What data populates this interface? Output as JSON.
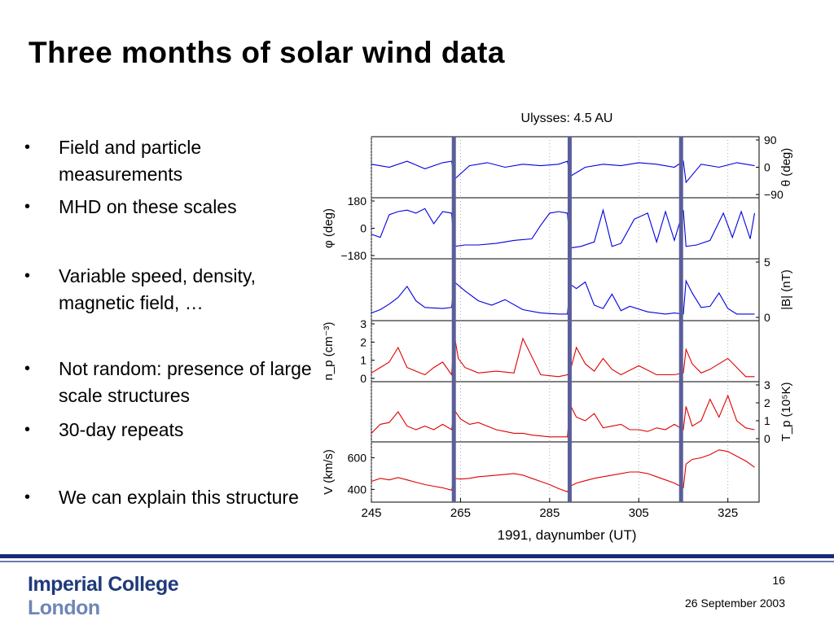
{
  "slide": {
    "title": "Three months of solar wind data",
    "page_number": "16",
    "date": "26 September 2003"
  },
  "bullets": [
    "Field and particle measurements",
    "MHD on these scales",
    "Variable speed, density, magnetic field, …",
    "Not random: presence of large scale structures",
    "30-day repeats",
    "We can explain this structure"
  ],
  "logo": {
    "line1": "Imperial College",
    "line2": "London"
  },
  "colors": {
    "title": "#000000",
    "footer_bar": "#1b2a78",
    "logo": "#1f3a7a",
    "field_trace": "#0000e0",
    "plasma_trace": "#e00000",
    "marker": "#5a5f99"
  },
  "chart_data": {
    "type": "line",
    "title": "Ulysses: 4.5 AU",
    "xlabel": "1991, daynumber (UT)",
    "xlim": [
      245,
      332
    ],
    "xticks": [
      "245",
      "265",
      "285",
      "305",
      "325"
    ],
    "vertical_markers": [
      263.5,
      289.5,
      314.5
    ],
    "panels": [
      {
        "id": "theta",
        "ylabel": "θ (deg)",
        "label_side": "right",
        "ylim": [
          -90,
          90
        ],
        "ticks": [
          "90",
          "0",
          "−90"
        ],
        "ticks_side": "right",
        "color": "#0000e0",
        "x": [
          245,
          249,
          253,
          257,
          261,
          263,
          263.6,
          267,
          271,
          275,
          279,
          283,
          287,
          289,
          289.6,
          293,
          297,
          301,
          305,
          309,
          313,
          315,
          315.6,
          319,
          323,
          327,
          331
        ],
        "values": [
          10,
          0,
          20,
          -5,
          15,
          20,
          -40,
          5,
          15,
          0,
          10,
          5,
          10,
          20,
          -30,
          0,
          10,
          5,
          15,
          10,
          0,
          20,
          -50,
          10,
          0,
          15,
          5
        ]
      },
      {
        "id": "phi",
        "ylabel": "φ (deg)",
        "label_side": "left",
        "ylim": [
          -180,
          180
        ],
        "ticks": [
          "180",
          "0",
          "−180"
        ],
        "ticks_side": "left",
        "color": "#0000e0",
        "x": [
          245,
          247,
          249,
          251,
          253,
          255,
          257,
          259,
          261,
          263,
          263.6,
          266,
          269,
          273,
          277,
          281,
          283,
          285,
          287,
          289,
          289.6,
          292,
          295,
          297,
          299,
          301,
          304,
          307,
          309,
          311,
          313,
          315,
          315.6,
          318,
          321,
          324,
          326,
          328,
          330,
          331
        ],
        "values": [
          -40,
          -60,
          90,
          110,
          120,
          100,
          130,
          30,
          110,
          100,
          -120,
          -110,
          -110,
          -100,
          -80,
          -70,
          20,
          100,
          110,
          100,
          -130,
          -120,
          -90,
          120,
          -120,
          -100,
          60,
          100,
          -90,
          110,
          -80,
          120,
          -120,
          -110,
          -80,
          100,
          -60,
          110,
          -70,
          100
        ]
      },
      {
        "id": "B",
        "ylabel": "|B| (nT)",
        "label_side": "right",
        "ylim": [
          0,
          5
        ],
        "ticks": [
          "5",
          "0"
        ],
        "ticks_side": "right",
        "color": "#0000e0",
        "x": [
          245,
          247,
          249,
          251,
          253,
          255,
          257,
          261,
          263,
          263.6,
          266,
          269,
          272,
          275,
          279,
          283,
          287,
          289,
          289.6,
          291,
          293,
          295,
          297,
          299,
          301,
          303,
          307,
          311,
          313,
          315,
          315.6,
          317,
          319,
          321,
          323,
          325,
          327,
          331
        ],
        "values": [
          0.4,
          0.7,
          1.2,
          1.8,
          2.8,
          1.5,
          0.9,
          0.8,
          0.9,
          3.2,
          2.4,
          1.5,
          1.1,
          1.6,
          0.7,
          0.4,
          0.3,
          0.3,
          3.0,
          2.6,
          3.2,
          1.1,
          0.8,
          2.1,
          0.6,
          1.0,
          0.5,
          0.3,
          0.4,
          0.3,
          3.3,
          2.2,
          0.9,
          1.0,
          2.2,
          0.8,
          0.3,
          0.3
        ]
      },
      {
        "id": "np",
        "ylabel": "n_p (cm⁻³)",
        "label_side": "left",
        "ylim": [
          0,
          3
        ],
        "ticks": [
          "3",
          "2",
          "1",
          "0"
        ],
        "ticks_side": "left",
        "color": "#e00000",
        "x": [
          245,
          247,
          249,
          251,
          253,
          255,
          257,
          259,
          261,
          263,
          263.6,
          264.5,
          266,
          269,
          273,
          277,
          279,
          283,
          287,
          289,
          289.6,
          291,
          293,
          295,
          297,
          299,
          301,
          305,
          309,
          313,
          315,
          315.6,
          317,
          319,
          321,
          325,
          329,
          331
        ],
        "values": [
          0.3,
          0.6,
          0.9,
          1.7,
          0.6,
          0.4,
          0.2,
          0.6,
          0.9,
          0.2,
          2.4,
          1.1,
          0.6,
          0.3,
          0.4,
          0.3,
          2.2,
          0.2,
          0.1,
          0.2,
          0.4,
          1.7,
          0.8,
          0.4,
          1.1,
          0.5,
          0.2,
          0.7,
          0.2,
          0.2,
          0.3,
          1.6,
          0.8,
          0.3,
          0.5,
          1.1,
          0.1,
          0.1
        ]
      },
      {
        "id": "Tp",
        "ylabel": "T_p (10⁵K)",
        "label_side": "right",
        "ylim": [
          0,
          3
        ],
        "ticks": [
          "3",
          "2",
          "1",
          "0"
        ],
        "ticks_side": "right",
        "color": "#e00000",
        "x": [
          245,
          247,
          249,
          251,
          253,
          255,
          257,
          259,
          261,
          263,
          263.6,
          265,
          267,
          269,
          271,
          273,
          275,
          277,
          279,
          281,
          283,
          285,
          287,
          289,
          289.6,
          291,
          293,
          295,
          297,
          299,
          301,
          303,
          305,
          307,
          309,
          311,
          313,
          315,
          315.6,
          317,
          319,
          321,
          323,
          325,
          327,
          329,
          331
        ],
        "values": [
          0.3,
          0.8,
          0.9,
          1.5,
          0.7,
          0.5,
          0.7,
          0.5,
          0.8,
          0.5,
          1.6,
          1.1,
          0.8,
          0.9,
          0.7,
          0.5,
          0.4,
          0.3,
          0.3,
          0.2,
          0.15,
          0.1,
          0.1,
          0.1,
          1.9,
          1.2,
          1.0,
          1.4,
          0.6,
          0.7,
          0.8,
          0.5,
          0.5,
          0.4,
          0.6,
          0.5,
          0.8,
          0.5,
          1.8,
          0.7,
          1.0,
          2.2,
          1.2,
          2.4,
          1.0,
          0.6,
          0.5
        ]
      },
      {
        "id": "V",
        "ylabel": "V (km/s)",
        "label_side": "left",
        "ylim": [
          340,
          680
        ],
        "ticks": [
          "600",
          "400"
        ],
        "ticks_side": "left",
        "color": "#e00000",
        "x": [
          245,
          247,
          249,
          251,
          253,
          255,
          257,
          259,
          261,
          263,
          263.6,
          265,
          267,
          269,
          271,
          273,
          275,
          277,
          279,
          281,
          283,
          285,
          287,
          289,
          289.6,
          291,
          293,
          295,
          297,
          299,
          301,
          303,
          305,
          307,
          309,
          311,
          313,
          315,
          315.6,
          317,
          319,
          321,
          323,
          325,
          327,
          329,
          331
        ],
        "values": [
          450,
          470,
          460,
          475,
          460,
          445,
          430,
          420,
          410,
          395,
          470,
          465,
          470,
          480,
          485,
          490,
          495,
          500,
          490,
          470,
          450,
          430,
          405,
          385,
          420,
          440,
          455,
          470,
          480,
          490,
          500,
          510,
          510,
          500,
          480,
          460,
          440,
          410,
          560,
          590,
          600,
          620,
          650,
          640,
          610,
          580,
          540
        ]
      }
    ]
  }
}
